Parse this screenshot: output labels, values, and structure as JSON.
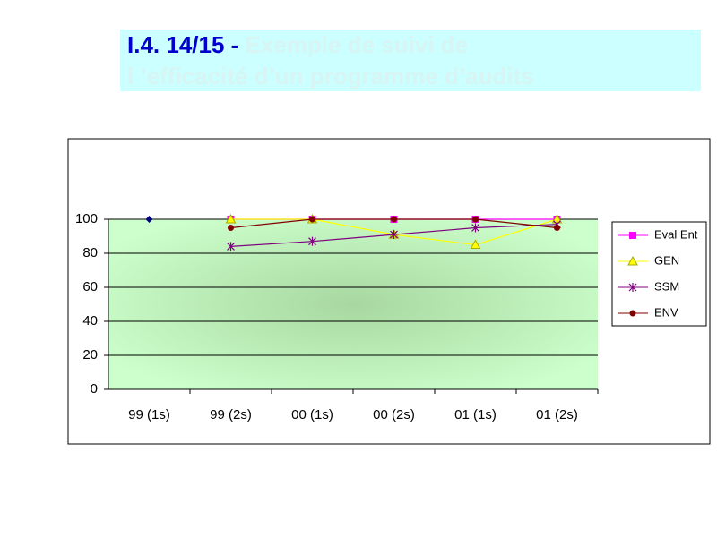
{
  "header": {
    "title_number": "I.4. 14/15 -",
    "title_lines": [
      "Exemple de suivi de",
      "l ’efficacité d’un programme d’audits"
    ]
  },
  "chart_data": {
    "type": "line",
    "categories": [
      "99 (1s)",
      "99 (2s)",
      "00 (1s)",
      "00 (2s)",
      "01 (1s)",
      "01 (2s)"
    ],
    "series": [
      {
        "color": "#000080",
        "marker": "diamond",
        "values": [
          100,
          null,
          null,
          100,
          null,
          100
        ]
      },
      {
        "name": "Eval Ent",
        "color": "#ff00ff",
        "marker": "square",
        "values": [
          null,
          100,
          100,
          100,
          100,
          100
        ]
      },
      {
        "name": "GEN",
        "color": "#ffff00",
        "marker": "triangle",
        "values": [
          null,
          100,
          100,
          91,
          85,
          100
        ]
      },
      {
        "name": "SSM",
        "color": "#800080",
        "marker": "asterisk",
        "values": [
          null,
          84,
          87,
          91,
          95,
          97
        ]
      },
      {
        "name": "ENV",
        "color": "#800000",
        "marker": "circle",
        "values": [
          null,
          95,
          100,
          100,
          100,
          95
        ]
      }
    ],
    "ylim": [
      0,
      100
    ],
    "yticks": [
      0,
      20,
      40,
      60,
      80,
      100
    ],
    "grid": true,
    "legend": "right"
  }
}
